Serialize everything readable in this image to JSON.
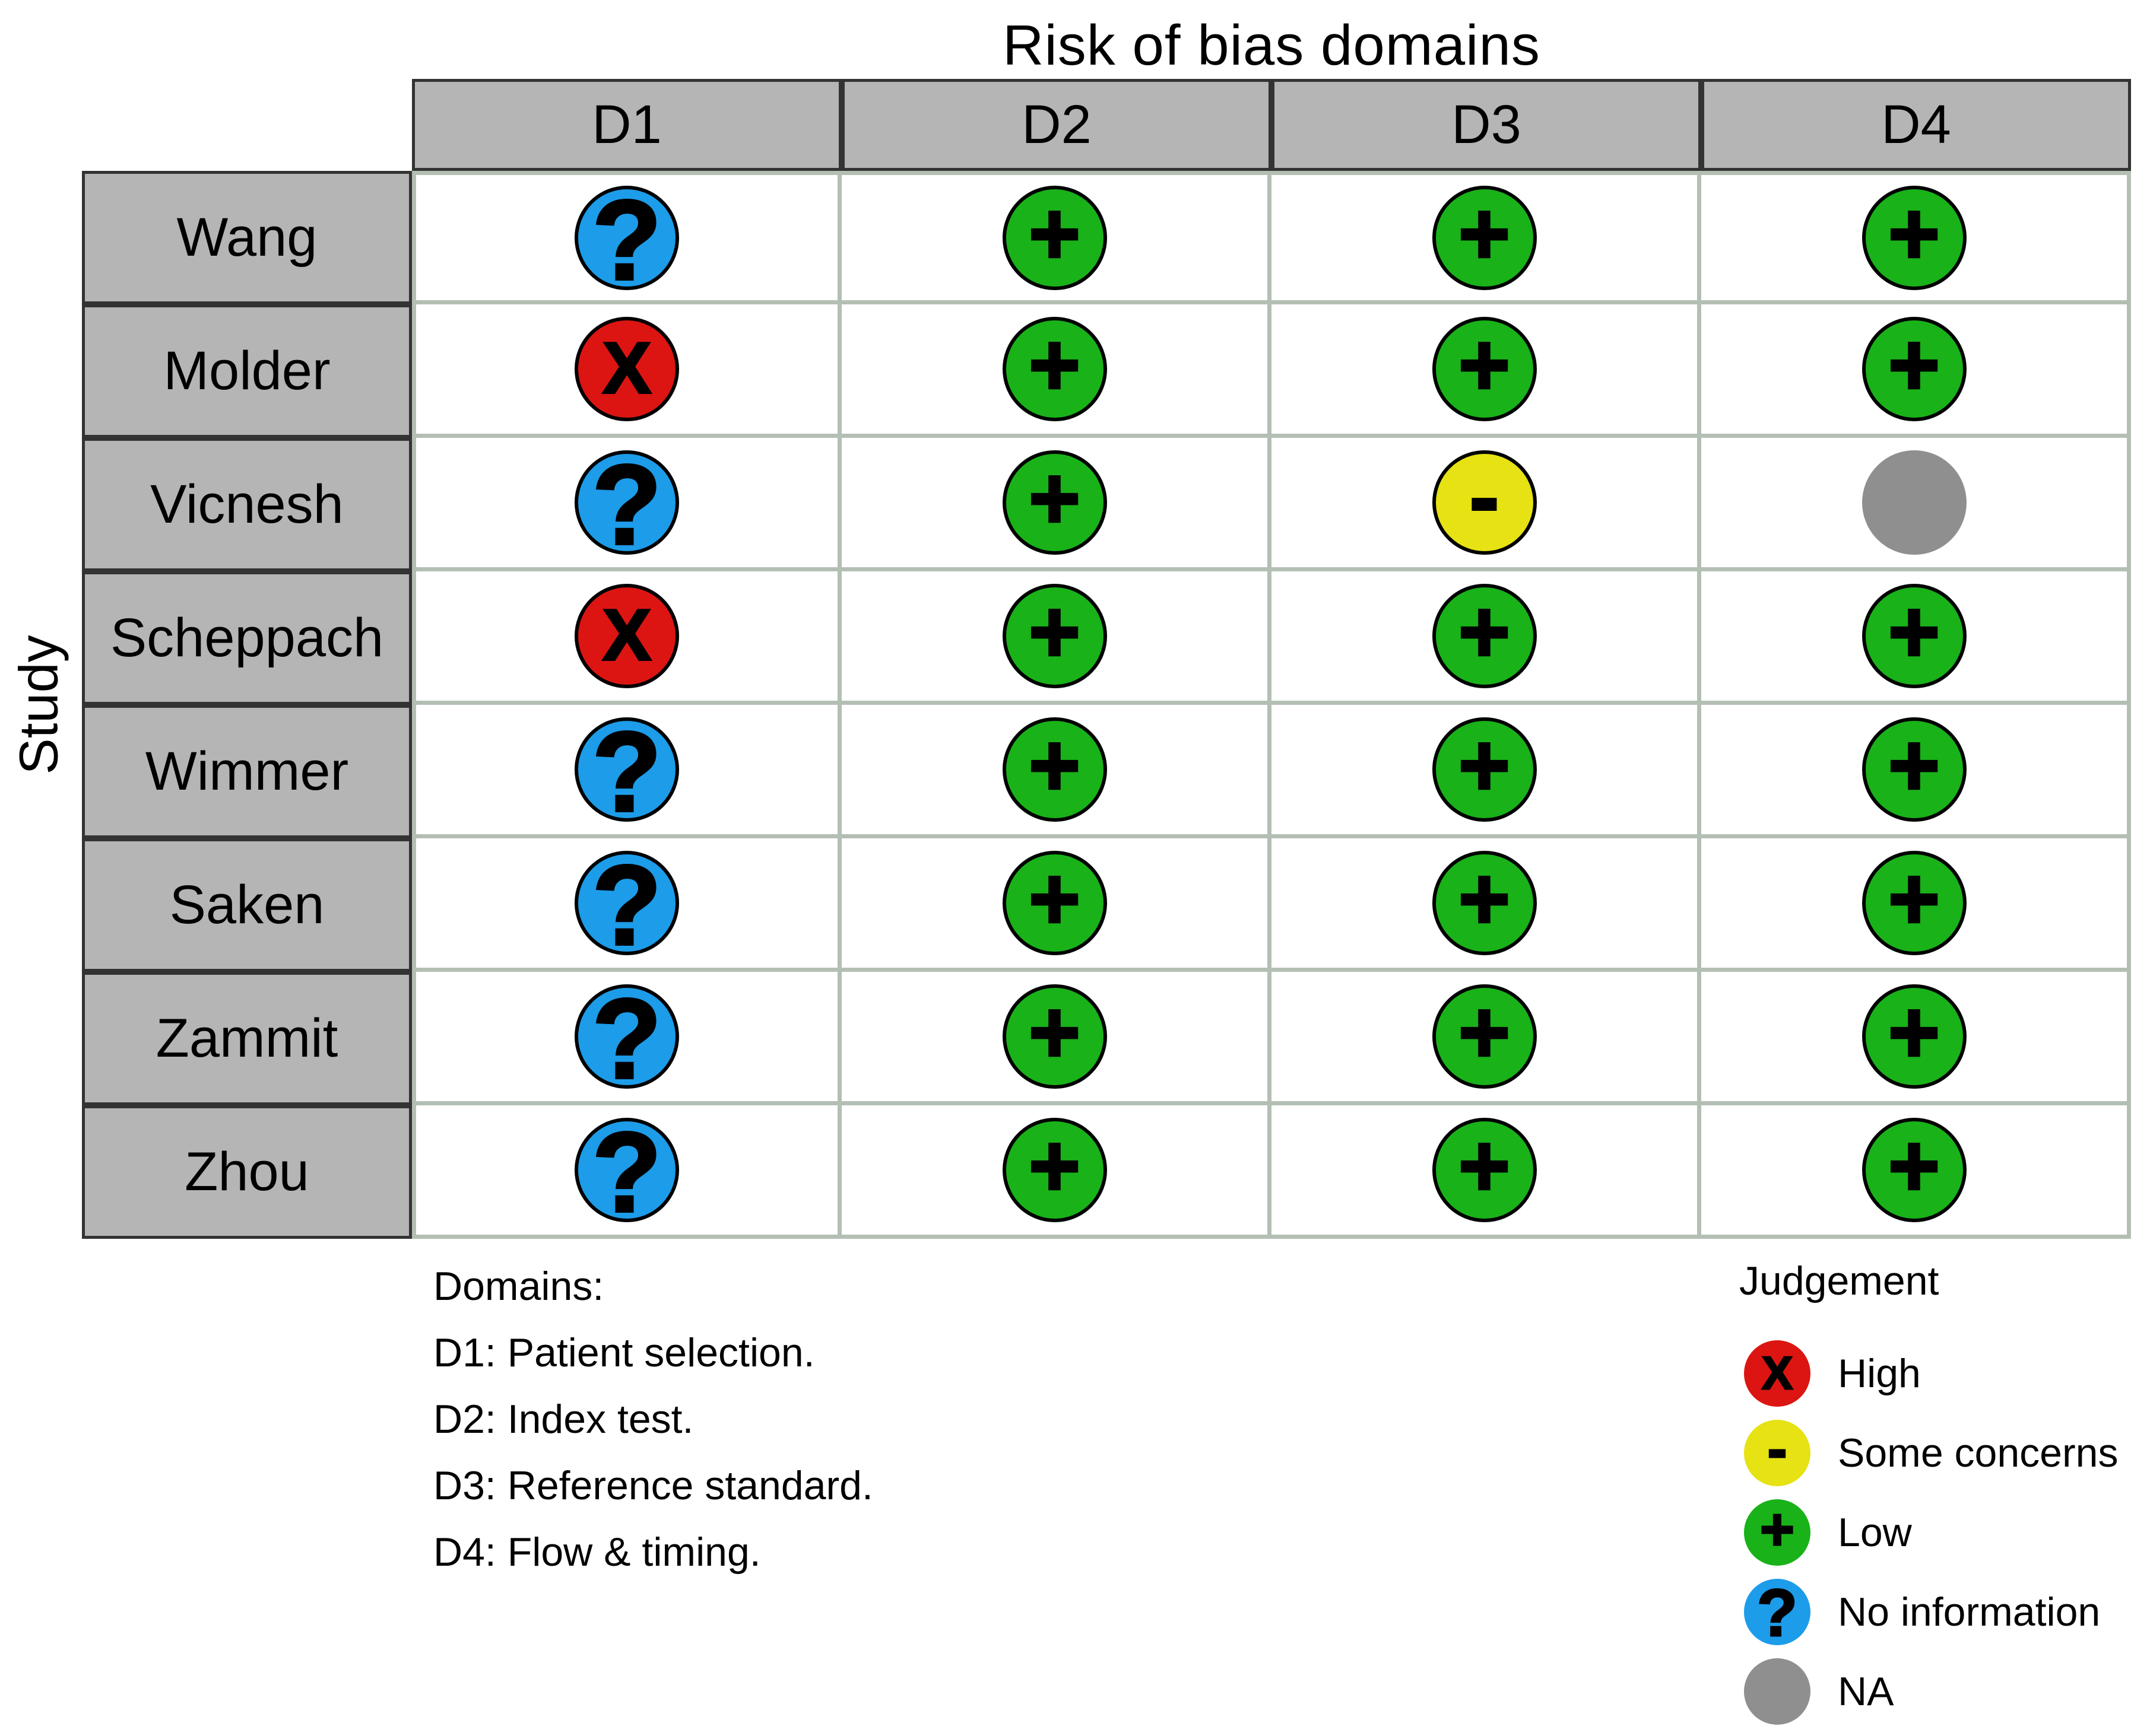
{
  "chart_data": {
    "type": "table",
    "title": "Risk of bias domains",
    "y_label": "Study",
    "columns": [
      "D1",
      "D2",
      "D3",
      "D4"
    ],
    "rows": [
      {
        "study": "Wang",
        "cells": [
          {
            "judgement": "no_information",
            "symbol": "?"
          },
          {
            "judgement": "low",
            "symbol": "+"
          },
          {
            "judgement": "low",
            "symbol": "+"
          },
          {
            "judgement": "low",
            "symbol": "+"
          }
        ]
      },
      {
        "study": "Molder",
        "cells": [
          {
            "judgement": "high",
            "symbol": "X"
          },
          {
            "judgement": "low",
            "symbol": "+"
          },
          {
            "judgement": "low",
            "symbol": "+"
          },
          {
            "judgement": "low",
            "symbol": "+"
          }
        ]
      },
      {
        "study": "Vicnesh",
        "cells": [
          {
            "judgement": "no_information",
            "symbol": "?"
          },
          {
            "judgement": "low",
            "symbol": "+"
          },
          {
            "judgement": "some_concerns",
            "symbol": "-"
          },
          {
            "judgement": "na",
            "symbol": ""
          }
        ]
      },
      {
        "study": "Scheppach",
        "cells": [
          {
            "judgement": "high",
            "symbol": "X"
          },
          {
            "judgement": "low",
            "symbol": "+"
          },
          {
            "judgement": "low",
            "symbol": "+"
          },
          {
            "judgement": "low",
            "symbol": "+"
          }
        ]
      },
      {
        "study": "Wimmer",
        "cells": [
          {
            "judgement": "no_information",
            "symbol": "?"
          },
          {
            "judgement": "low",
            "symbol": "+"
          },
          {
            "judgement": "low",
            "symbol": "+"
          },
          {
            "judgement": "low",
            "symbol": "+"
          }
        ]
      },
      {
        "study": "Saken",
        "cells": [
          {
            "judgement": "no_information",
            "symbol": "?"
          },
          {
            "judgement": "low",
            "symbol": "+"
          },
          {
            "judgement": "low",
            "symbol": "+"
          },
          {
            "judgement": "low",
            "symbol": "+"
          }
        ]
      },
      {
        "study": "Zammit",
        "cells": [
          {
            "judgement": "no_information",
            "symbol": "?"
          },
          {
            "judgement": "low",
            "symbol": "+"
          },
          {
            "judgement": "low",
            "symbol": "+"
          },
          {
            "judgement": "low",
            "symbol": "+"
          }
        ]
      },
      {
        "study": "Zhou",
        "cells": [
          {
            "judgement": "no_information",
            "symbol": "?"
          },
          {
            "judgement": "low",
            "symbol": "+"
          },
          {
            "judgement": "low",
            "symbol": "+"
          },
          {
            "judgement": "low",
            "symbol": "+"
          }
        ]
      }
    ],
    "legend_position": "bottom-right",
    "grid": "on"
  },
  "footnote": {
    "heading": "Domains:",
    "lines": [
      "D1: Patient selection.",
      "D2: Index test.",
      "D3: Reference standard.",
      "D4: Flow & timing."
    ]
  },
  "legend": {
    "title": "Judgement",
    "items": [
      {
        "judgement": "high",
        "symbol": "X",
        "label": "High"
      },
      {
        "judgement": "some_concerns",
        "symbol": "-",
        "label": "Some concerns"
      },
      {
        "judgement": "low",
        "symbol": "+",
        "label": "Low"
      },
      {
        "judgement": "no_information",
        "symbol": "?",
        "label": "No information"
      },
      {
        "judgement": "na",
        "symbol": "",
        "label": "NA"
      }
    ]
  },
  "colors": {
    "high": "#dc1512",
    "some_concerns": "#e6e213",
    "low": "#19b219",
    "no_information": "#1c9ce9",
    "na": "#8f8f8f",
    "header_background": "#b5b5b5",
    "header_border": "#333333",
    "cell_grid": "#b3bfb3",
    "symbol": "#000000"
  }
}
